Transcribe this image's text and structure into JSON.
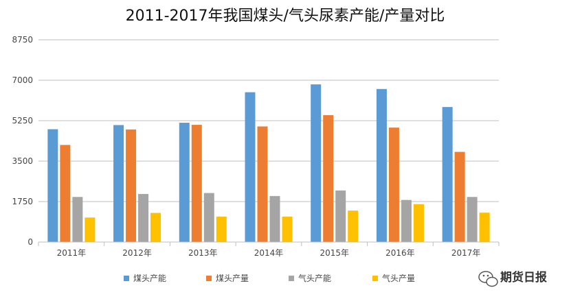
{
  "chart_data": {
    "type": "bar",
    "title": "2011-2017年我国煤头/气头尿素产能/产量对比",
    "xlabel": "",
    "ylabel": "",
    "categories": [
      "2011年",
      "2012年",
      "2013年",
      "2014年",
      "2015年",
      "2016年",
      "2017年"
    ],
    "series": [
      {
        "name": "煤头产能",
        "color": "#5b9bd5",
        "values": [
          4880,
          5060,
          5160,
          6480,
          6820,
          6620,
          5840
        ]
      },
      {
        "name": "煤头产量",
        "color": "#ed7d31",
        "values": [
          4200,
          4870,
          5070,
          5000,
          5490,
          4950,
          3900
        ]
      },
      {
        "name": "气头产能",
        "color": "#a5a5a5",
        "values": [
          1950,
          2080,
          2120,
          1990,
          2230,
          1820,
          1950
        ]
      },
      {
        "name": "气头产量",
        "color": "#ffc000",
        "values": [
          1060,
          1260,
          1100,
          1100,
          1360,
          1640,
          1270
        ]
      }
    ],
    "yticks": [
      "0",
      "1750",
      "3500",
      "5250",
      "7000",
      "8750"
    ],
    "ylim": [
      0,
      8750
    ],
    "grid": true,
    "legend_position": "bottom"
  },
  "watermark": {
    "text": "期货日报",
    "icon": "wechat-icon"
  }
}
